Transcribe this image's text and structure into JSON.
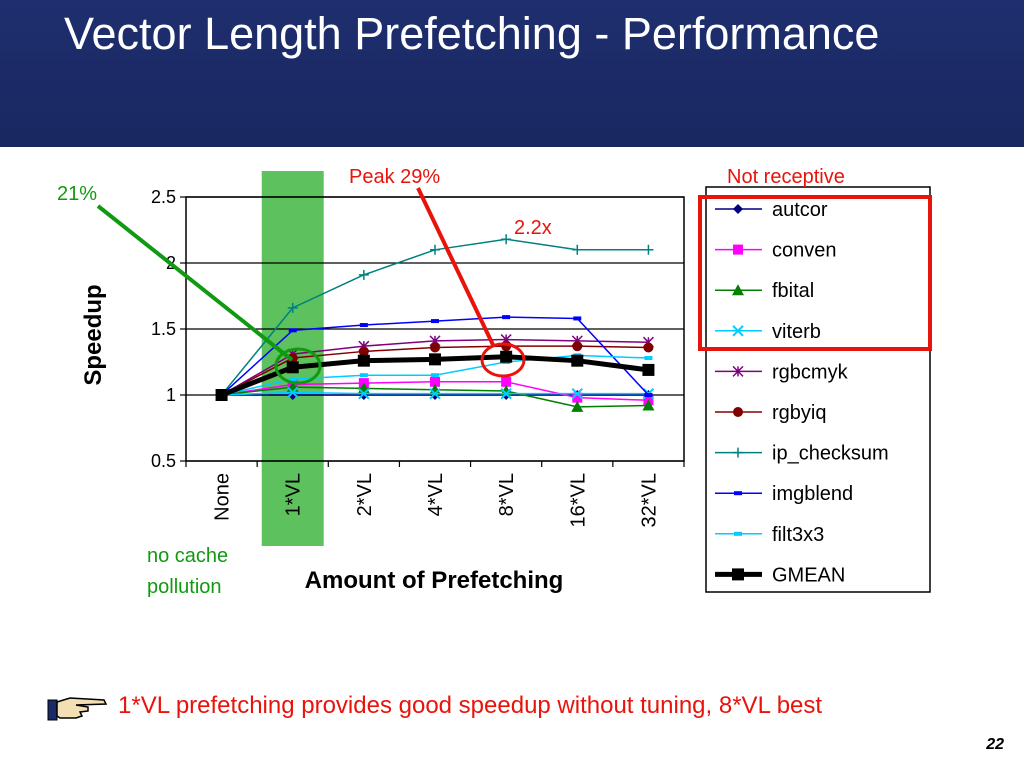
{
  "slide": {
    "title": "Vector Length Prefetching - Performance",
    "bottom_note": "1*VL prefetching provides good speedup without tuning, 8*VL best",
    "page_number": "22",
    "icon": "pointing-hand-icon"
  },
  "annotations": {
    "peak": "Peak 29%",
    "not_receptive": "Not receptive",
    "left_pct": "21%",
    "ratio": "2.2x",
    "no_cache_line1": "no cache",
    "no_cache_line2": "pollution"
  },
  "colors": {
    "title_bg": "#1b2a66",
    "highlight_green": "#5dc25d",
    "annotation_red": "#e8140c",
    "annotation_green": "#119a11"
  },
  "chart_data": {
    "type": "line",
    "xlabel": "Amount of Prefetching",
    "ylabel": "Speedup",
    "ylim": [
      0.5,
      2.5
    ],
    "yticks": [
      0.5,
      1,
      1.5,
      2,
      2.5
    ],
    "categories": [
      "None",
      "1*VL",
      "2*VL",
      "4*VL",
      "8*VL",
      "16*VL",
      "32*VL"
    ],
    "highlighted_category": "1*VL",
    "grid": "horizontal",
    "legend_position": "right",
    "series": [
      {
        "name": "autcor",
        "color": "#000080",
        "marker": "diamond",
        "values": [
          1.0,
          1.0,
          1.0,
          1.0,
          1.0,
          1.0,
          1.0
        ]
      },
      {
        "name": "conven",
        "color": "#ff00ff",
        "marker": "square",
        "values": [
          1.0,
          1.08,
          1.09,
          1.1,
          1.1,
          0.98,
          0.96
        ]
      },
      {
        "name": "fbital",
        "color": "#008000",
        "marker": "triangle",
        "values": [
          1.0,
          1.06,
          1.05,
          1.04,
          1.03,
          0.91,
          0.92
        ]
      },
      {
        "name": "viterb",
        "color": "#00ccff",
        "marker": "x",
        "values": [
          1.0,
          1.02,
          1.01,
          1.01,
          1.01,
          1.01,
          1.01
        ]
      },
      {
        "name": "rgbcmyk",
        "color": "#800080",
        "marker": "star",
        "values": [
          1.0,
          1.31,
          1.37,
          1.41,
          1.42,
          1.41,
          1.4
        ]
      },
      {
        "name": "rgbyiq",
        "color": "#800000",
        "marker": "circle",
        "values": [
          1.0,
          1.28,
          1.33,
          1.36,
          1.37,
          1.37,
          1.36
        ]
      },
      {
        "name": "ip_checksum",
        "color": "#008080",
        "marker": "plus",
        "values": [
          1.0,
          1.66,
          1.91,
          2.1,
          2.18,
          2.1,
          2.1
        ]
      },
      {
        "name": "imgblend",
        "color": "#0000ff",
        "marker": "dash",
        "values": [
          1.0,
          1.49,
          1.53,
          1.56,
          1.59,
          1.58,
          1.0
        ]
      },
      {
        "name": "filt3x3",
        "color": "#00ccff",
        "marker": "dash",
        "values": [
          1.0,
          1.12,
          1.15,
          1.15,
          1.25,
          1.3,
          1.28
        ]
      },
      {
        "name": "GMEAN",
        "color": "#000000",
        "marker": "square",
        "values": [
          1.0,
          1.21,
          1.26,
          1.27,
          1.29,
          1.26,
          1.19
        ],
        "bold": true
      }
    ]
  }
}
